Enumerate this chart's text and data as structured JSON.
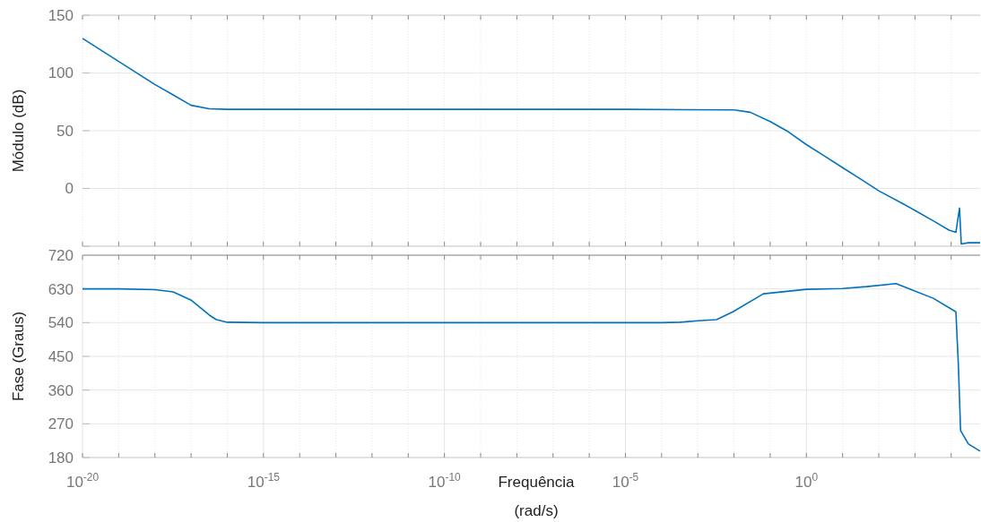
{
  "chart_data": [
    {
      "type": "line",
      "ylabel": "Módulo (dB)",
      "log": "x",
      "grid": true,
      "tick_labels": "y",
      "line_style": "solid",
      "xlim": [
        1e-20,
        63000
      ],
      "ylim": [
        -50,
        150
      ],
      "xticks": [
        {
          "value": 1e-20,
          "label": null
        },
        {
          "value": 1e-19,
          "label": null
        },
        {
          "value": 1e-18,
          "label": null
        },
        {
          "value": 1e-17,
          "label": null
        },
        {
          "value": 1e-16,
          "label": null
        },
        {
          "value": 1e-15,
          "label": null
        },
        {
          "value": 1e-14,
          "label": null
        },
        {
          "value": 1e-13,
          "label": null
        },
        {
          "value": 1e-12,
          "label": null
        },
        {
          "value": 1e-11,
          "label": null
        },
        {
          "value": 1e-10,
          "label": null
        },
        {
          "value": 1e-09,
          "label": null
        },
        {
          "value": 1e-08,
          "label": null
        },
        {
          "value": 1e-07,
          "label": null
        },
        {
          "value": 1e-06,
          "label": null
        },
        {
          "value": 1e-05,
          "label": null
        },
        {
          "value": 0.0001,
          "label": null
        },
        {
          "value": 0.001,
          "label": null
        },
        {
          "value": 0.01,
          "label": null
        },
        {
          "value": 0.1,
          "label": null
        },
        {
          "value": 1,
          "label": null
        },
        {
          "value": 10,
          "label": null
        },
        {
          "value": 100,
          "label": null
        },
        {
          "value": 1000,
          "label": null
        },
        {
          "value": 10000,
          "label": null
        }
      ],
      "yticks": [
        {
          "value": -50,
          "label": null
        },
        0,
        50,
        100,
        150
      ],
      "series": [
        {
          "color": "#0072bd",
          "x": [
            1e-20,
            1e-19,
            1e-18,
            3.2e-18,
            1e-17,
            3.2e-17,
            1e-16,
            1e-15,
            1e-10,
            1e-05,
            0.01,
            0.028,
            0.1,
            0.32,
            1,
            3.2,
            10,
            32,
            100,
            450,
            1000,
            3200,
            8700,
            13500,
            17000,
            19000,
            30000,
            63000
          ],
          "values": [
            130,
            110,
            90,
            81,
            72,
            69,
            68.5,
            68.5,
            68.5,
            68.5,
            68,
            66,
            58,
            49,
            38,
            28,
            18,
            8,
            -2,
            -13,
            -19,
            -28,
            -36,
            -38,
            -17,
            -48,
            -47,
            -47
          ]
        }
      ]
    },
    {
      "type": "line",
      "ylabel": "Fase (Graus)",
      "xlabel": "Frequência\n(rad/s)",
      "log": "x",
      "grid": true,
      "line_style": "solid",
      "xlim": [
        1e-20,
        63000
      ],
      "ylim": [
        180,
        720
      ],
      "xticks": [
        {
          "value": 1e-20,
          "label": "10$^{-20}$"
        },
        {
          "value": 1e-19,
          "label": null
        },
        {
          "value": 1e-18,
          "label": null
        },
        {
          "value": 1e-17,
          "label": null
        },
        {
          "value": 1e-16,
          "label": null
        },
        {
          "value": 1e-15,
          "label": "10$^{-15}$"
        },
        {
          "value": 1e-14,
          "label": null
        },
        {
          "value": 1e-13,
          "label": null
        },
        {
          "value": 1e-12,
          "label": null
        },
        {
          "value": 1e-11,
          "label": null
        },
        {
          "value": 1e-10,
          "label": "10$^{-10}$"
        },
        {
          "value": 1e-09,
          "label": null
        },
        {
          "value": 1e-08,
          "label": null
        },
        {
          "value": 1e-07,
          "label": null
        },
        {
          "value": 1e-06,
          "label": null
        },
        {
          "value": 1e-05,
          "label": "10$^{-5}$"
        },
        {
          "value": 0.0001,
          "label": null
        },
        {
          "value": 0.001,
          "label": null
        },
        {
          "value": 0.01,
          "label": null
        },
        {
          "value": 0.1,
          "label": null
        },
        {
          "value": 1,
          "label": "10$^{0}$"
        },
        {
          "value": 10,
          "label": null
        },
        {
          "value": 100,
          "label": null
        },
        {
          "value": 1000,
          "label": null
        },
        {
          "value": 10000,
          "label": null
        }
      ],
      "yticks": [
        180,
        270,
        360,
        450,
        540,
        630,
        720
      ],
      "series": [
        {
          "color": "#0072bd",
          "x": [
            1e-20,
            1e-19,
            1e-18,
            3.2e-18,
            1e-17,
            3.2e-17,
            5e-17,
            1e-16,
            1e-15,
            1e-10,
            0.0001,
            0.00032,
            0.001,
            0.0033,
            0.0093,
            0.065,
            1,
            10,
            46,
            300,
            3200,
            13500,
            15800,
            18200,
            30000,
            63000
          ],
          "values": [
            630,
            630,
            628,
            622,
            600,
            560,
            548,
            541,
            540,
            540,
            540,
            541,
            545,
            548,
            569,
            617,
            629,
            631,
            636,
            644,
            605,
            569,
            428,
            252,
            216,
            197
          ]
        }
      ]
    }
  ]
}
